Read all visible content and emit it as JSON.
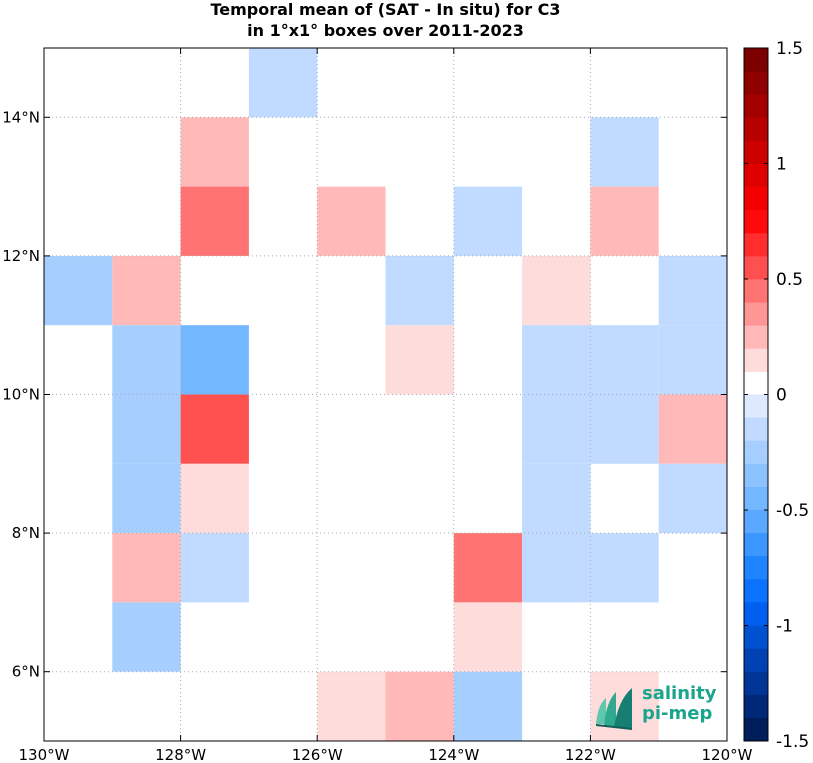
{
  "title": {
    "line1": "Temporal mean of (SAT - In situ) for C3",
    "line2": "in 1°x1° boxes over 2011-2023"
  },
  "logo": {
    "line1": "salinity",
    "line2": "pi-mep",
    "color": "#1aa58d"
  },
  "chart_data": {
    "type": "heatmap",
    "x_range": [
      -130,
      -120
    ],
    "y_range": [
      5,
      15
    ],
    "x_ticks": [
      -130,
      -128,
      -126,
      -124,
      -122,
      -120
    ],
    "x_tick_labels": [
      "130°W",
      "128°W",
      "126°W",
      "124°W",
      "122°W",
      "120°W"
    ],
    "y_ticks": [
      6,
      8,
      10,
      12,
      14
    ],
    "y_tick_labels": [
      "6°N",
      "8°N",
      "10°N",
      "12°N",
      "14°N"
    ],
    "grid": true,
    "cell_size_deg": 1,
    "cells": [
      {
        "lon": -127,
        "lat": 14,
        "value": -0.12
      },
      {
        "lon": -128,
        "lat": 13,
        "value": 0.3
      },
      {
        "lon": -122,
        "lat": 13,
        "value": -0.12
      },
      {
        "lon": -128,
        "lat": 12,
        "value": 0.4
      },
      {
        "lon": -126,
        "lat": 12,
        "value": 0.3
      },
      {
        "lon": -124,
        "lat": 12,
        "value": -0.12
      },
      {
        "lon": -122,
        "lat": 12,
        "value": 0.3
      },
      {
        "lon": -130,
        "lat": 11,
        "value": -0.25
      },
      {
        "lon": -129,
        "lat": 11,
        "value": 0.2
      },
      {
        "lon": -125,
        "lat": 11,
        "value": -0.12
      },
      {
        "lon": -123,
        "lat": 11,
        "value": 0.15
      },
      {
        "lon": -121,
        "lat": 11,
        "value": -0.12
      },
      {
        "lon": -129,
        "lat": 10,
        "value": -0.3
      },
      {
        "lon": -128,
        "lat": 10,
        "value": -0.45
      },
      {
        "lon": -125,
        "lat": 10,
        "value": 0.15
      },
      {
        "lon": -123,
        "lat": 10,
        "value": -0.12
      },
      {
        "lon": -122,
        "lat": 10,
        "value": -0.12
      },
      {
        "lon": -121,
        "lat": 10,
        "value": -0.12
      },
      {
        "lon": -129,
        "lat": 9,
        "value": -0.3
      },
      {
        "lon": -128,
        "lat": 9,
        "value": 0.55
      },
      {
        "lon": -123,
        "lat": 9,
        "value": -0.12
      },
      {
        "lon": -122,
        "lat": 9,
        "value": -0.12
      },
      {
        "lon": -121,
        "lat": 9,
        "value": 0.2
      },
      {
        "lon": -129,
        "lat": 8,
        "value": -0.3
      },
      {
        "lon": -128,
        "lat": 8,
        "value": 0.15
      },
      {
        "lon": -123,
        "lat": 8,
        "value": -0.12
      },
      {
        "lon": -121,
        "lat": 8,
        "value": -0.12
      },
      {
        "lon": -129,
        "lat": 7,
        "value": 0.3
      },
      {
        "lon": -128,
        "lat": 7,
        "value": -0.12
      },
      {
        "lon": -124,
        "lat": 7,
        "value": 0.4
      },
      {
        "lon": -123,
        "lat": 7,
        "value": -0.12
      },
      {
        "lon": -122,
        "lat": 7,
        "value": -0.12
      },
      {
        "lon": -129,
        "lat": 6,
        "value": -0.3
      },
      {
        "lon": -124,
        "lat": 6,
        "value": 0.15
      },
      {
        "lon": -126,
        "lat": 5,
        "value": 0.15
      },
      {
        "lon": -125,
        "lat": 5,
        "value": 0.3
      },
      {
        "lon": -124,
        "lat": 5,
        "value": -0.25
      },
      {
        "lon": -122,
        "lat": 5,
        "value": 0.15
      }
    ],
    "colorbar": {
      "range": [
        -1.5,
        1.5
      ],
      "ticks": [
        -1.5,
        -1,
        -0.5,
        0,
        0.5,
        1,
        1.5
      ],
      "tick_labels": [
        "-1.5",
        "-1",
        "-0.5",
        "0",
        "0.5",
        "1",
        "1.5"
      ],
      "colors": [
        "#ffffff",
        "#ffdcdc",
        "#ffb9b9",
        "#ff9696",
        "#ff7373",
        "#ff5050",
        "#ff2d2d",
        "#ff0a0a",
        "#f50000",
        "#e10000",
        "#cd0000",
        "#b90000",
        "#a50000",
        "#910000",
        "#7d0000",
        "#690000"
      ],
      "neg_colors": [
        "#dce9ff",
        "#c0dbff",
        "#a6cfff",
        "#8cc3ff",
        "#72b7ff",
        "#5aa8ff",
        "#3b96ff",
        "#1e84ff",
        "#0a72ff",
        "#005ff0",
        "#0050d2",
        "#0042b4",
        "#003496",
        "#002878",
        "#001e5a"
      ]
    }
  }
}
